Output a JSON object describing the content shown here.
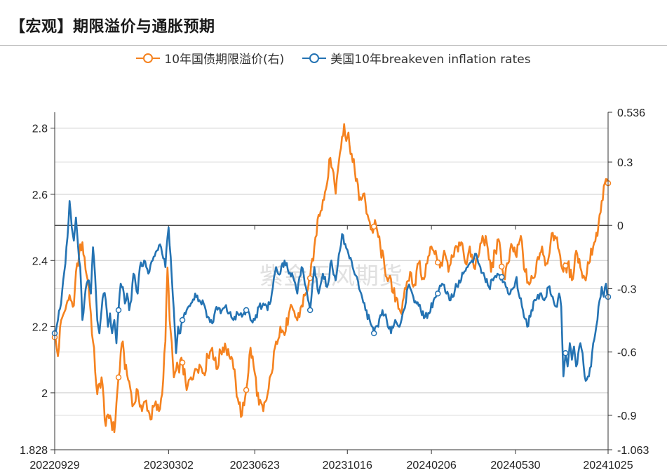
{
  "title": "【宏观】期限溢价与通胀预期",
  "watermark": "紫金天风期货",
  "colors": {
    "orange": "#F5821F",
    "blue": "#2473B3",
    "grid": "#cccccc",
    "axis": "#333333"
  },
  "chart_data": {
    "type": "line",
    "title": "【宏观】期限溢价与通胀预期",
    "legend_position": "top-center",
    "x_tick_labels": [
      "20220929",
      "20230302",
      "20230623",
      "20231016",
      "20240206",
      "20240530",
      "20241025"
    ],
    "x_range_index": [
      0,
      520
    ],
    "x_tick_index": [
      0,
      107,
      188,
      275,
      354,
      433,
      520
    ],
    "left_axis": {
      "min": 1.828,
      "max": 2.848,
      "ticks": [
        1.828,
        2.0,
        2.2,
        2.4,
        2.6,
        2.8
      ],
      "tick_labels": [
        "1.828",
        "2",
        "2.2",
        "2.4",
        "2.6",
        "2.8"
      ]
    },
    "right_axis": {
      "min": -1.063,
      "max": 0.536,
      "ticks": [
        -1.063,
        -0.9,
        -0.6,
        -0.3,
        0,
        0.3,
        0.536
      ],
      "tick_labels": [
        "-1.063",
        "-0.9",
        "-0.6",
        "-0.3",
        "0",
        "0.3",
        "0.536"
      ]
    },
    "series": [
      {
        "name": "10年国债期限溢价(右)",
        "axis": "right",
        "color": "#F5821F",
        "anchors": [
          [
            0,
            -0.53
          ],
          [
            3,
            -0.62
          ],
          [
            6,
            -0.45
          ],
          [
            10,
            -0.4
          ],
          [
            14,
            -0.33
          ],
          [
            18,
            -0.38
          ],
          [
            21,
            -0.18
          ],
          [
            26,
            -0.08
          ],
          [
            28,
            -0.15
          ],
          [
            32,
            -0.3
          ],
          [
            36,
            -0.55
          ],
          [
            40,
            -0.8
          ],
          [
            44,
            -0.72
          ],
          [
            48,
            -0.95
          ],
          [
            52,
            -0.9
          ],
          [
            56,
            -0.98
          ],
          [
            60,
            -0.72
          ],
          [
            64,
            -0.55
          ],
          [
            66,
            -0.68
          ],
          [
            70,
            -0.74
          ],
          [
            74,
            -0.85
          ],
          [
            78,
            -0.78
          ],
          [
            82,
            -0.88
          ],
          [
            86,
            -0.83
          ],
          [
            90,
            -0.92
          ],
          [
            94,
            -0.85
          ],
          [
            98,
            -0.88
          ],
          [
            101,
            -0.8
          ],
          [
            104,
            -0.55
          ],
          [
            106,
            -0.2
          ],
          [
            108,
            -0.45
          ],
          [
            112,
            -0.72
          ],
          [
            116,
            -0.67
          ],
          [
            120,
            -0.65
          ],
          [
            124,
            -0.78
          ],
          [
            128,
            -0.72
          ],
          [
            132,
            -0.68
          ],
          [
            136,
            -0.66
          ],
          [
            140,
            -0.7
          ],
          [
            144,
            -0.62
          ],
          [
            148,
            -0.58
          ],
          [
            152,
            -0.68
          ],
          [
            156,
            -0.6
          ],
          [
            160,
            -0.56
          ],
          [
            164,
            -0.62
          ],
          [
            168,
            -0.68
          ],
          [
            172,
            -0.82
          ],
          [
            176,
            -0.9
          ],
          [
            180,
            -0.78
          ],
          [
            184,
            -0.58
          ],
          [
            188,
            -0.7
          ],
          [
            192,
            -0.85
          ],
          [
            196,
            -0.88
          ],
          [
            200,
            -0.8
          ],
          [
            204,
            -0.7
          ],
          [
            208,
            -0.55
          ],
          [
            212,
            -0.48
          ],
          [
            216,
            -0.52
          ],
          [
            220,
            -0.42
          ],
          [
            224,
            -0.4
          ],
          [
            228,
            -0.45
          ],
          [
            232,
            -0.38
          ],
          [
            236,
            -0.32
          ],
          [
            240,
            -0.25
          ],
          [
            244,
            -0.1
          ],
          [
            248,
            0.05
          ],
          [
            252,
            0.12
          ],
          [
            256,
            0.2
          ],
          [
            259,
            0.32
          ],
          [
            262,
            0.25
          ],
          [
            264,
            0.15
          ],
          [
            267,
            0.3
          ],
          [
            270,
            0.42
          ],
          [
            272,
            0.48
          ],
          [
            274,
            0.4
          ],
          [
            276,
            0.44
          ],
          [
            280,
            0.3
          ],
          [
            284,
            0.22
          ],
          [
            286,
            0.12
          ],
          [
            290,
            0.15
          ],
          [
            294,
            0.05
          ],
          [
            298,
            -0.02
          ],
          [
            302,
            0.0
          ],
          [
            306,
            -0.1
          ],
          [
            310,
            -0.2
          ],
          [
            314,
            -0.25
          ],
          [
            318,
            -0.32
          ],
          [
            322,
            -0.35
          ],
          [
            326,
            -0.42
          ],
          [
            330,
            -0.3
          ],
          [
            334,
            -0.22
          ],
          [
            338,
            -0.28
          ],
          [
            342,
            -0.18
          ],
          [
            346,
            -0.25
          ],
          [
            350,
            -0.18
          ],
          [
            354,
            -0.1
          ],
          [
            358,
            -0.12
          ],
          [
            362,
            -0.2
          ],
          [
            366,
            -0.12
          ],
          [
            370,
            -0.22
          ],
          [
            374,
            -0.15
          ],
          [
            378,
            -0.1
          ],
          [
            382,
            -0.08
          ],
          [
            386,
            -0.18
          ],
          [
            390,
            -0.1
          ],
          [
            394,
            -0.2
          ],
          [
            398,
            -0.15
          ],
          [
            402,
            -0.05
          ],
          [
            406,
            -0.08
          ],
          [
            410,
            -0.22
          ],
          [
            414,
            -0.12
          ],
          [
            418,
            -0.08
          ],
          [
            422,
            -0.25
          ],
          [
            426,
            -0.18
          ],
          [
            430,
            -0.1
          ],
          [
            434,
            -0.15
          ],
          [
            438,
            -0.05
          ],
          [
            442,
            -0.22
          ],
          [
            446,
            -0.28
          ],
          [
            450,
            -0.25
          ],
          [
            454,
            -0.15
          ],
          [
            458,
            -0.1
          ],
          [
            462,
            -0.18
          ],
          [
            466,
            -0.08
          ],
          [
            470,
            -0.05
          ],
          [
            474,
            -0.12
          ],
          [
            478,
            -0.22
          ],
          [
            482,
            -0.18
          ],
          [
            486,
            -0.26
          ],
          [
            490,
            -0.12
          ],
          [
            494,
            -0.2
          ],
          [
            498,
            -0.25
          ],
          [
            502,
            -0.18
          ],
          [
            506,
            -0.1
          ],
          [
            510,
            -0.05
          ],
          [
            512,
            0.05
          ],
          [
            515,
            0.12
          ],
          [
            517,
            0.2
          ],
          [
            520,
            0.2
          ]
        ]
      },
      {
        "name": "美国10年breakeven inflation rates",
        "axis": "left",
        "color": "#2473B3",
        "anchors": [
          [
            0,
            2.18
          ],
          [
            3,
            2.22
          ],
          [
            6,
            2.27
          ],
          [
            8,
            2.34
          ],
          [
            10,
            2.39
          ],
          [
            12,
            2.47
          ],
          [
            14,
            2.58
          ],
          [
            16,
            2.5
          ],
          [
            18,
            2.46
          ],
          [
            20,
            2.53
          ],
          [
            22,
            2.44
          ],
          [
            24,
            2.38
          ],
          [
            26,
            2.22
          ],
          [
            28,
            2.28
          ],
          [
            30,
            2.33
          ],
          [
            32,
            2.34
          ],
          [
            34,
            2.3
          ],
          [
            36,
            2.44
          ],
          [
            38,
            2.35
          ],
          [
            40,
            2.22
          ],
          [
            42,
            2.18
          ],
          [
            44,
            2.25
          ],
          [
            46,
            2.3
          ],
          [
            48,
            2.28
          ],
          [
            50,
            2.2
          ],
          [
            52,
            2.24
          ],
          [
            54,
            2.18
          ],
          [
            56,
            2.22
          ],
          [
            58,
            2.15
          ],
          [
            60,
            2.25
          ],
          [
            62,
            2.33
          ],
          [
            64,
            2.32
          ],
          [
            66,
            2.27
          ],
          [
            68,
            2.3
          ],
          [
            70,
            2.25
          ],
          [
            72,
            2.28
          ],
          [
            74,
            2.36
          ],
          [
            76,
            2.33
          ],
          [
            78,
            2.3
          ],
          [
            80,
            2.38
          ],
          [
            84,
            2.4
          ],
          [
            88,
            2.36
          ],
          [
            92,
            2.4
          ],
          [
            96,
            2.43
          ],
          [
            100,
            2.44
          ],
          [
            104,
            2.38
          ],
          [
            106,
            2.47
          ],
          [
            107,
            2.5
          ],
          [
            110,
            2.35
          ],
          [
            112,
            2.25
          ],
          [
            114,
            2.12
          ],
          [
            116,
            2.2
          ],
          [
            118,
            2.18
          ],
          [
            120,
            2.22
          ],
          [
            124,
            2.25
          ],
          [
            128,
            2.27
          ],
          [
            132,
            2.3
          ],
          [
            136,
            2.28
          ],
          [
            140,
            2.27
          ],
          [
            144,
            2.23
          ],
          [
            148,
            2.21
          ],
          [
            152,
            2.26
          ],
          [
            156,
            2.24
          ],
          [
            160,
            2.26
          ],
          [
            164,
            2.24
          ],
          [
            168,
            2.22
          ],
          [
            172,
            2.24
          ],
          [
            176,
            2.23
          ],
          [
            180,
            2.25
          ],
          [
            184,
            2.22
          ],
          [
            188,
            2.22
          ],
          [
            192,
            2.26
          ],
          [
            196,
            2.27
          ],
          [
            200,
            2.25
          ],
          [
            204,
            2.3
          ],
          [
            208,
            2.38
          ],
          [
            212,
            2.36
          ],
          [
            216,
            2.4
          ],
          [
            220,
            2.36
          ],
          [
            224,
            2.35
          ],
          [
            228,
            2.3
          ],
          [
            232,
            2.38
          ],
          [
            236,
            2.32
          ],
          [
            240,
            2.25
          ],
          [
            244,
            2.38
          ],
          [
            248,
            2.3
          ],
          [
            252,
            2.36
          ],
          [
            256,
            2.32
          ],
          [
            260,
            2.4
          ],
          [
            264,
            2.34
          ],
          [
            268,
            2.43
          ],
          [
            270,
            2.48
          ],
          [
            272,
            2.45
          ],
          [
            276,
            2.42
          ],
          [
            280,
            2.38
          ],
          [
            284,
            2.35
          ],
          [
            288,
            2.3
          ],
          [
            292,
            2.25
          ],
          [
            296,
            2.22
          ],
          [
            300,
            2.18
          ],
          [
            304,
            2.2
          ],
          [
            308,
            2.25
          ],
          [
            312,
            2.22
          ],
          [
            316,
            2.18
          ],
          [
            320,
            2.22
          ],
          [
            324,
            2.2
          ],
          [
            328,
            2.25
          ],
          [
            332,
            2.32
          ],
          [
            336,
            2.3
          ],
          [
            340,
            2.27
          ],
          [
            344,
            2.25
          ],
          [
            348,
            2.23
          ],
          [
            352,
            2.24
          ],
          [
            356,
            2.28
          ],
          [
            360,
            2.3
          ],
          [
            364,
            2.33
          ],
          [
            368,
            2.3
          ],
          [
            372,
            2.28
          ],
          [
            376,
            2.31
          ],
          [
            380,
            2.34
          ],
          [
            384,
            2.36
          ],
          [
            388,
            2.38
          ],
          [
            392,
            2.4
          ],
          [
            396,
            2.42
          ],
          [
            400,
            2.38
          ],
          [
            404,
            2.35
          ],
          [
            408,
            2.32
          ],
          [
            412,
            2.34
          ],
          [
            416,
            2.36
          ],
          [
            420,
            2.35
          ],
          [
            424,
            2.32
          ],
          [
            428,
            2.3
          ],
          [
            432,
            2.32
          ],
          [
            434,
            2.35
          ],
          [
            436,
            2.3
          ],
          [
            440,
            2.25
          ],
          [
            444,
            2.2
          ],
          [
            448,
            2.25
          ],
          [
            452,
            2.28
          ],
          [
            456,
            2.3
          ],
          [
            460,
            2.28
          ],
          [
            464,
            2.32
          ],
          [
            468,
            2.29
          ],
          [
            472,
            2.26
          ],
          [
            474,
            2.3
          ],
          [
            476,
            2.26
          ],
          [
            478,
            2.05
          ],
          [
            480,
            2.12
          ],
          [
            482,
            2.08
          ],
          [
            484,
            2.15
          ],
          [
            486,
            2.1
          ],
          [
            488,
            2.14
          ],
          [
            490,
            2.08
          ],
          [
            492,
            2.12
          ],
          [
            494,
            2.15
          ],
          [
            496,
            2.12
          ],
          [
            498,
            2.05
          ],
          [
            500,
            2.04
          ],
          [
            502,
            2.05
          ],
          [
            504,
            2.08
          ],
          [
            506,
            2.15
          ],
          [
            508,
            2.18
          ],
          [
            510,
            2.22
          ],
          [
            512,
            2.28
          ],
          [
            514,
            2.32
          ],
          [
            516,
            2.29
          ],
          [
            518,
            2.33
          ],
          [
            520,
            2.29
          ]
        ]
      }
    ],
    "markers_every_index": 60
  }
}
